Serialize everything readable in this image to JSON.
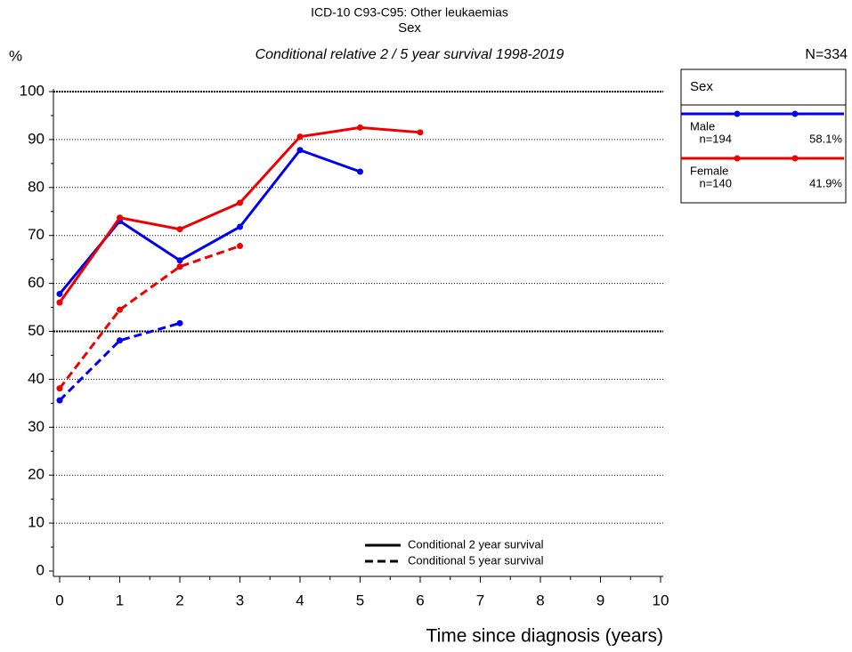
{
  "chart_data": {
    "type": "line",
    "title": "ICD-10 C93-C95: Other leukaemias",
    "subtitle": "Sex",
    "caption": "Conditional relative 2 / 5 year survival 1998-2019",
    "y_label": "%",
    "total_label": "N=334",
    "x_label": "Time since diagnosis (years)",
    "legend_title": "Sex",
    "x": [
      0,
      1,
      2,
      3,
      4,
      5,
      6
    ],
    "styles": [
      {
        "label": "Conditional 2 year survival",
        "dash": "solid"
      },
      {
        "label": "Conditional 5 year survival",
        "dash": "dashed"
      }
    ],
    "series": [
      {
        "name": "Male",
        "color": "#0000ee",
        "n_label": "n=194",
        "share_label": "58.1%",
        "lines": [
          {
            "values": [
              57.8,
              73.0,
              64.8,
              71.8,
              87.8,
              83.3,
              null
            ]
          },
          {
            "values": [
              35.6,
              48.1,
              51.7,
              null,
              null,
              null,
              null
            ]
          }
        ]
      },
      {
        "name": "Female",
        "color": "#ee0000",
        "n_label": "n=140",
        "share_label": "41.9%",
        "lines": [
          {
            "values": [
              56.0,
              73.7,
              71.3,
              76.8,
              90.6,
              92.5,
              91.5
            ]
          },
          {
            "values": [
              38.1,
              54.5,
              63.5,
              67.8,
              null,
              null,
              null
            ]
          }
        ]
      }
    ],
    "xlim": [
      0,
      10
    ],
    "xticks": [
      0,
      1,
      2,
      3,
      4,
      5,
      6,
      7,
      8,
      9,
      10
    ],
    "ylim": [
      0,
      100
    ],
    "yticks": [
      0,
      10,
      20,
      30,
      40,
      50,
      60,
      70,
      80,
      90,
      100
    ],
    "grid": true
  }
}
